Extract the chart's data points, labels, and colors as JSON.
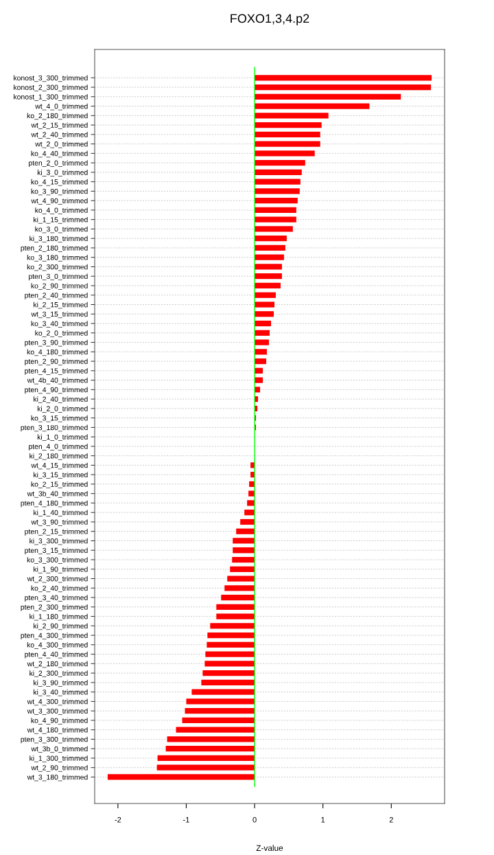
{
  "chart_data": {
    "type": "bar",
    "orientation": "horizontal",
    "title": "FOXO1,3,4.p2",
    "xlabel": "Z-value",
    "categories": [
      "konost_3_300_trimmed",
      "konost_2_300_trimmed",
      "konost_1_300_trimmed",
      "wt_4_0_trimmed",
      "ko_2_180_trimmed",
      "wt_2_15_trimmed",
      "wt_2_40_trimmed",
      "wt_2_0_trimmed",
      "ko_4_40_trimmed",
      "pten_2_0_trimmed",
      "ki_3_0_trimmed",
      "ko_4_15_trimmed",
      "ko_3_90_trimmed",
      "wt_4_90_trimmed",
      "ko_4_0_trimmed",
      "ki_1_15_trimmed",
      "ko_3_0_trimmed",
      "ki_3_180_trimmed",
      "pten_2_180_trimmed",
      "ko_3_180_trimmed",
      "ko_2_300_trimmed",
      "pten_3_0_trimmed",
      "ko_2_90_trimmed",
      "pten_2_40_trimmed",
      "ki_2_15_trimmed",
      "wt_3_15_trimmed",
      "ko_3_40_trimmed",
      "ko_2_0_trimmed",
      "pten_3_90_trimmed",
      "ko_4_180_trimmed",
      "pten_2_90_trimmed",
      "pten_4_15_trimmed",
      "wt_4b_40_trimmed",
      "pten_4_90_trimmed",
      "ki_2_40_trimmed",
      "ki_2_0_trimmed",
      "ko_3_15_trimmed",
      "pten_3_180_trimmed",
      "ki_1_0_trimmed",
      "pten_4_0_trimmed",
      "ki_2_180_trimmed",
      "wt_4_15_trimmed",
      "ki_3_15_trimmed",
      "ko_2_15_trimmed",
      "wt_3b_40_trimmed",
      "pten_4_180_trimmed",
      "ki_1_40_trimmed",
      "wt_3_90_trimmed",
      "pten_2_15_trimmed",
      "ki_3_300_trimmed",
      "pten_3_15_trimmed",
      "ko_3_300_trimmed",
      "ki_1_90_trimmed",
      "wt_2_300_trimmed",
      "ko_2_40_trimmed",
      "pten_3_40_trimmed",
      "pten_2_300_trimmed",
      "ki_1_180_trimmed",
      "ki_2_90_trimmed",
      "pten_4_300_trimmed",
      "ko_4_300_trimmed",
      "pten_4_40_trimmed",
      "wt_2_180_trimmed",
      "ki_2_300_trimmed",
      "ki_3_90_trimmed",
      "ki_3_40_trimmed",
      "wt_4_300_trimmed",
      "wt_3_300_trimmed",
      "ko_4_90_trimmed",
      "wt_4_180_trimmed",
      "pten_3_300_trimmed",
      "wt_3b_0_trimmed",
      "ki_1_300_trimmed",
      "wt_2_90_trimmed",
      "wt_3_180_trimmed"
    ],
    "values": [
      2.59,
      2.58,
      2.14,
      1.68,
      1.08,
      0.98,
      0.96,
      0.96,
      0.88,
      0.74,
      0.69,
      0.67,
      0.66,
      0.63,
      0.61,
      0.61,
      0.56,
      0.47,
      0.45,
      0.43,
      0.4,
      0.4,
      0.38,
      0.31,
      0.29,
      0.28,
      0.24,
      0.22,
      0.21,
      0.18,
      0.17,
      0.12,
      0.12,
      0.08,
      0.05,
      0.04,
      0.02,
      0.02,
      null,
      null,
      null,
      -0.06,
      -0.06,
      -0.08,
      -0.09,
      -0.11,
      -0.15,
      -0.21,
      -0.27,
      -0.32,
      -0.32,
      -0.33,
      -0.36,
      -0.4,
      -0.44,
      -0.49,
      -0.56,
      -0.56,
      -0.65,
      -0.69,
      -0.7,
      -0.72,
      -0.73,
      -0.76,
      -0.78,
      -0.92,
      -1.0,
      -1.02,
      -1.06,
      -1.15,
      -1.28,
      -1.3,
      -1.42,
      -1.43,
      -2.15
    ],
    "color": "#ff0000",
    "xlim": [
      -2.34,
      2.78
    ],
    "xticks": [
      -2,
      -1,
      0,
      1,
      2
    ],
    "ref_lines": [
      {
        "axis": "x",
        "value": 0,
        "color": "#00ff00"
      }
    ],
    "grid": "y"
  }
}
